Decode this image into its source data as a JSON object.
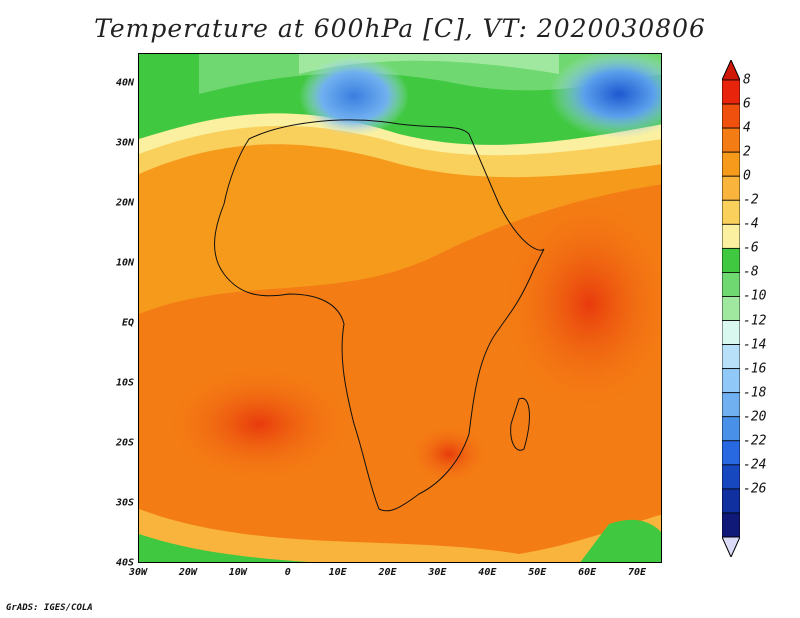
{
  "title": "Temperature at 600hPa [C], VT: 2020030806",
  "footer": "GrADS: IGES/COLA",
  "map": {
    "lon_range": [
      -30,
      75
    ],
    "lat_range": [
      -40,
      45
    ],
    "lat_labels": [
      "40N",
      "30N",
      "20N",
      "10N",
      "EQ",
      "10S",
      "20S",
      "30S",
      "40S"
    ],
    "lat_values": [
      40,
      30,
      20,
      10,
      0,
      -10,
      -20,
      -30,
      -40
    ],
    "lon_labels": [
      "30W",
      "20W",
      "10W",
      "0",
      "10E",
      "20E",
      "30E",
      "40E",
      "50E",
      "60E",
      "70E"
    ],
    "lon_values": [
      -30,
      -20,
      -10,
      0,
      10,
      20,
      30,
      40,
      50,
      60,
      70
    ]
  },
  "colorbar": {
    "labels": [
      "8",
      "6",
      "4",
      "2",
      "0",
      "-2",
      "-4",
      "-6",
      "-8",
      "-10",
      "-12",
      "-14",
      "-16",
      "-18",
      "-20",
      "-22",
      "-24",
      "-26"
    ],
    "colors": [
      "#e8240c",
      "#f0500e",
      "#f47c14",
      "#f69a1c",
      "#f8b43c",
      "#fad05c",
      "#faf0a0",
      "#40c840",
      "#70d870",
      "#a0e8a0",
      "#d8f8f0",
      "#b8e0f8",
      "#90c8f8",
      "#70b0f0",
      "#4890e8",
      "#2868e0",
      "#1848c0",
      "#1030a0",
      "#101878"
    ],
    "top_color": "#d01808",
    "bottom_color": "#dcdcf8"
  }
}
